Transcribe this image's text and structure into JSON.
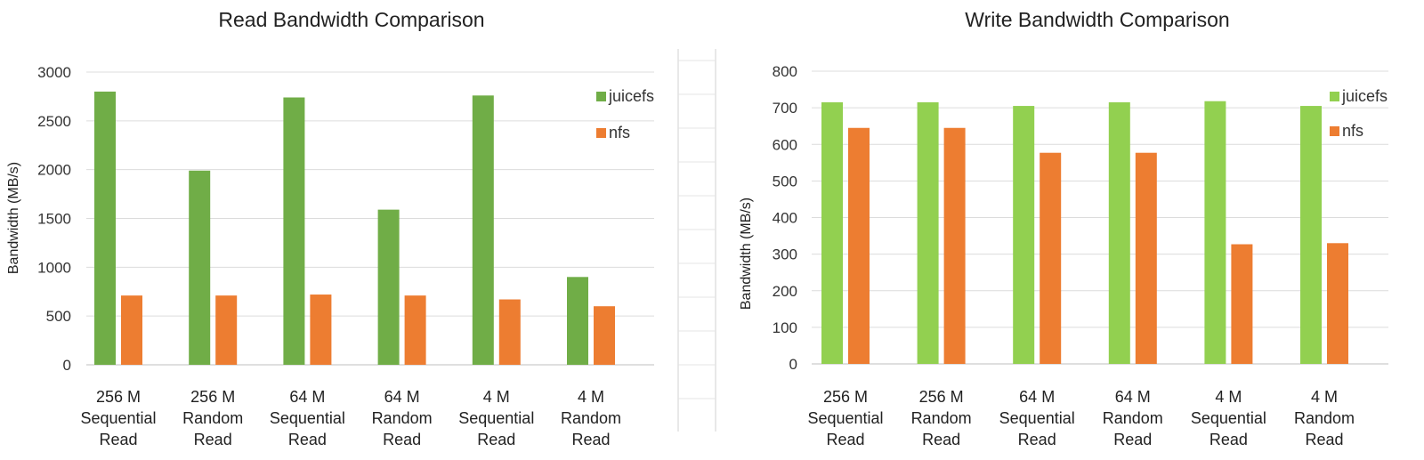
{
  "chart_data": [
    {
      "type": "bar",
      "title": "Read Bandwidth Comparison",
      "xlabel": "",
      "ylabel": "Bandwidth (MB/s)",
      "ylim": [
        0,
        3000
      ],
      "yticks": [
        0,
        500,
        1000,
        1500,
        2000,
        2500,
        3000
      ],
      "grid": true,
      "legend_position": "top-right",
      "categories": [
        [
          "256 M",
          "Sequential",
          "Read"
        ],
        [
          "256 M",
          "Random",
          "Read"
        ],
        [
          "64 M",
          "Sequential",
          "Read"
        ],
        [
          "64 M",
          "Random",
          "Read"
        ],
        [
          "4 M",
          "Sequential",
          "Read"
        ],
        [
          "4 M",
          "Random",
          "Read"
        ]
      ],
      "series": [
        {
          "name": "juicefs",
          "color": "#70ad47",
          "values": [
            2800,
            1990,
            2740,
            1590,
            2760,
            900
          ]
        },
        {
          "name": "nfs",
          "color": "#ed7d31",
          "values": [
            710,
            710,
            720,
            710,
            670,
            600
          ]
        }
      ]
    },
    {
      "type": "bar",
      "title": "Write Bandwidth Comparison",
      "xlabel": "",
      "ylabel": "Bandwidth (MB/s)",
      "ylim": [
        0,
        800
      ],
      "yticks": [
        0,
        100,
        200,
        300,
        400,
        500,
        600,
        700,
        800
      ],
      "grid": true,
      "legend_position": "top-right",
      "categories": [
        [
          "256 M",
          "Sequential",
          "Read"
        ],
        [
          "256 M",
          "Random",
          "Read"
        ],
        [
          "64 M",
          "Sequential",
          "Read"
        ],
        [
          "64 M",
          "Random",
          "Read"
        ],
        [
          "4 M",
          "Sequential",
          "Read"
        ],
        [
          "4 M",
          "Random",
          "Read"
        ]
      ],
      "series": [
        {
          "name": "juicefs",
          "color": "#92d050",
          "values": [
            715,
            715,
            705,
            715,
            718,
            705
          ]
        },
        {
          "name": "nfs",
          "color": "#ed7d31",
          "values": [
            645,
            645,
            577,
            577,
            327,
            330
          ]
        }
      ]
    }
  ]
}
